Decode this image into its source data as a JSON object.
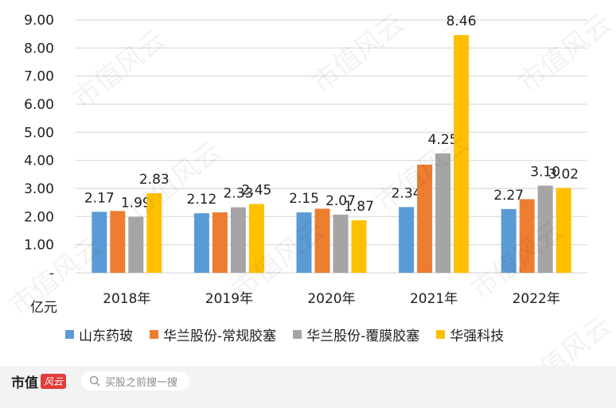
{
  "chart_data": {
    "type": "bar",
    "categories": [
      "2018年",
      "2019年",
      "2020年",
      "2021年",
      "2022年"
    ],
    "series": [
      {
        "name": "山东药玻",
        "color": "#5b9bd5",
        "values": [
          2.17,
          2.12,
          2.15,
          2.34,
          2.27
        ],
        "labels": [
          "2.17",
          "2.12",
          "2.15",
          "2.34",
          "2.27"
        ]
      },
      {
        "name": "华兰股份-常规胶塞",
        "color": "#ed7d31",
        "values": [
          2.2,
          2.15,
          2.28,
          3.85,
          2.62
        ],
        "labels": [
          null,
          null,
          null,
          null,
          null
        ]
      },
      {
        "name": "华兰股份-覆膜胶塞",
        "color": "#a5a5a5",
        "values": [
          1.99,
          2.33,
          2.07,
          4.25,
          3.1
        ],
        "labels": [
          "1.99",
          "2.33",
          "2.07",
          "4.25",
          "3.10"
        ]
      },
      {
        "name": "华强科技",
        "color": "#ffc000",
        "values": [
          2.83,
          2.45,
          1.87,
          8.46,
          3.02
        ],
        "labels": [
          "2.83",
          "2.45",
          "1.87",
          "8.46",
          "3.02"
        ]
      }
    ],
    "y_ticks": [
      "-",
      "1.00",
      "2.00",
      "3.00",
      "4.00",
      "5.00",
      "6.00",
      "7.00",
      "8.00",
      "9.00"
    ],
    "ylim": [
      0,
      9
    ],
    "unit": "亿元",
    "grid": true,
    "legend_position": "bottom"
  },
  "footer": {
    "brand": "市值",
    "brand_badge": "风云",
    "search_placeholder": "买股之前搜一搜"
  },
  "watermark": "市值风云"
}
